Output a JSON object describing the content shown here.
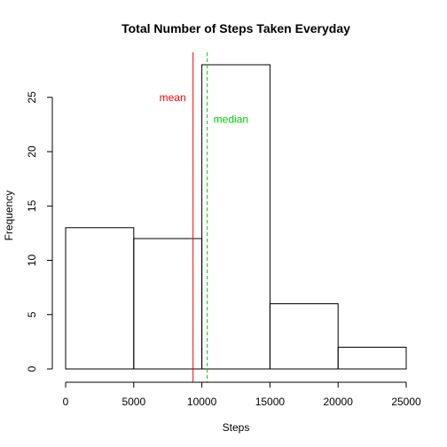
{
  "chart_data": {
    "type": "bar",
    "title": "Total Number of Steps Taken Everyday",
    "xlabel": "Steps",
    "ylabel": "Frequency",
    "bins": [
      {
        "from": 0,
        "to": 5000,
        "count": 13
      },
      {
        "from": 5000,
        "to": 10000,
        "count": 12
      },
      {
        "from": 10000,
        "to": 15000,
        "count": 28
      },
      {
        "from": 15000,
        "to": 20000,
        "count": 6
      },
      {
        "from": 20000,
        "to": 25000,
        "count": 2
      }
    ],
    "xlim": [
      0,
      25000
    ],
    "ylim": [
      0,
      28
    ],
    "x_ticks": [
      "0",
      "5000",
      "10000",
      "15000",
      "20000",
      "25000"
    ],
    "y_ticks": [
      "0",
      "5",
      "10",
      "15",
      "20",
      "25"
    ],
    "reference_lines": [
      {
        "label": "mean",
        "value": 9354,
        "color": "#ff0000",
        "style": "solid",
        "label_y": 25,
        "label_side": "left"
      },
      {
        "label": "median",
        "value": 10395,
        "color": "#00cc00",
        "style": "dashed",
        "label_y": 23,
        "label_side": "right"
      }
    ],
    "grid": false,
    "legend": "none"
  }
}
